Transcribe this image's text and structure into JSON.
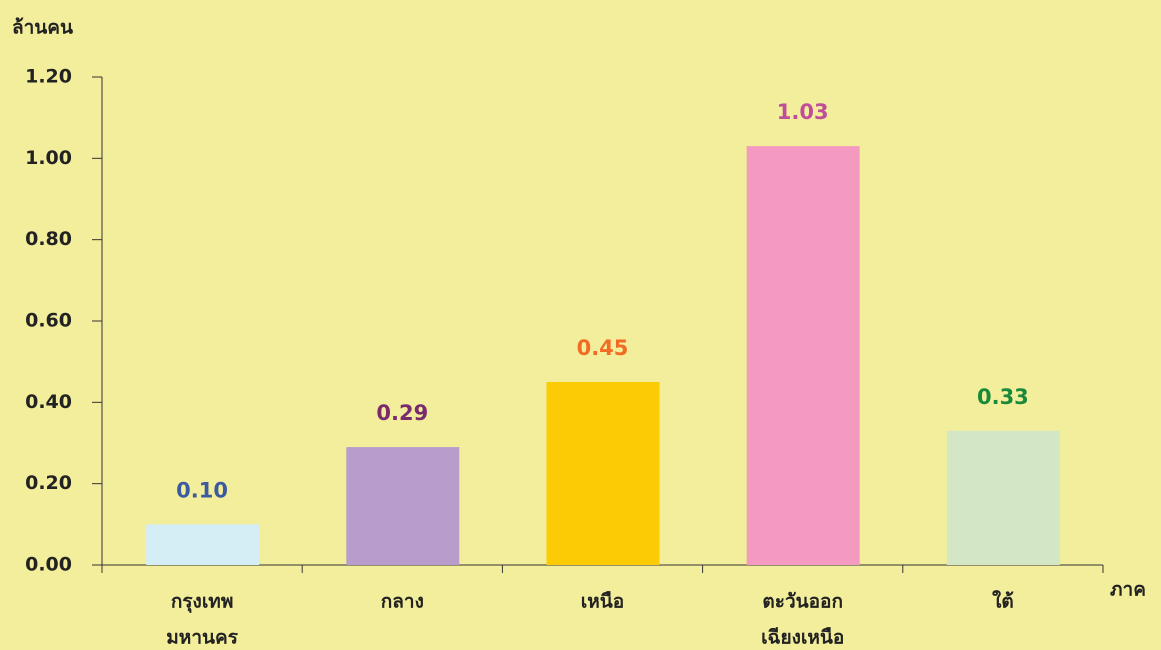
{
  "chart_data": {
    "type": "bar",
    "y_label": "ล้านคน",
    "x_label": "ภาค",
    "categories": [
      [
        "กรุงเทพ",
        "มหานคร"
      ],
      [
        "กลาง"
      ],
      [
        "เหนือ"
      ],
      [
        "ตะวันออก",
        "เฉียงเหนือ"
      ],
      [
        "ใต้"
      ]
    ],
    "values": [
      0.1,
      0.29,
      0.45,
      1.03,
      0.33
    ],
    "value_labels": [
      "0.10",
      "0.29",
      "0.45",
      "1.03",
      "0.33"
    ],
    "colors": [
      "#d5edf5",
      "#b89ccb",
      "#fdcb05",
      "#f49ac1",
      "#d3e7c6"
    ],
    "label_colors": [
      "#3b5ba0",
      "#7b2a6e",
      "#f26b24",
      "#c04d9a",
      "#1a8a3a"
    ],
    "ylim": [
      0,
      1.2
    ],
    "yticks": [
      {
        "value": 0,
        "label": "0.00"
      },
      {
        "value": 0.2,
        "label": "0.20"
      },
      {
        "value": 0.4,
        "label": "0.40"
      },
      {
        "value": 0.6,
        "label": "0.60"
      },
      {
        "value": 0.8,
        "label": "0.80"
      },
      {
        "value": 1.0,
        "label": "1.00"
      },
      {
        "value": 1.2,
        "label": "1.20"
      }
    ],
    "grid": false
  }
}
